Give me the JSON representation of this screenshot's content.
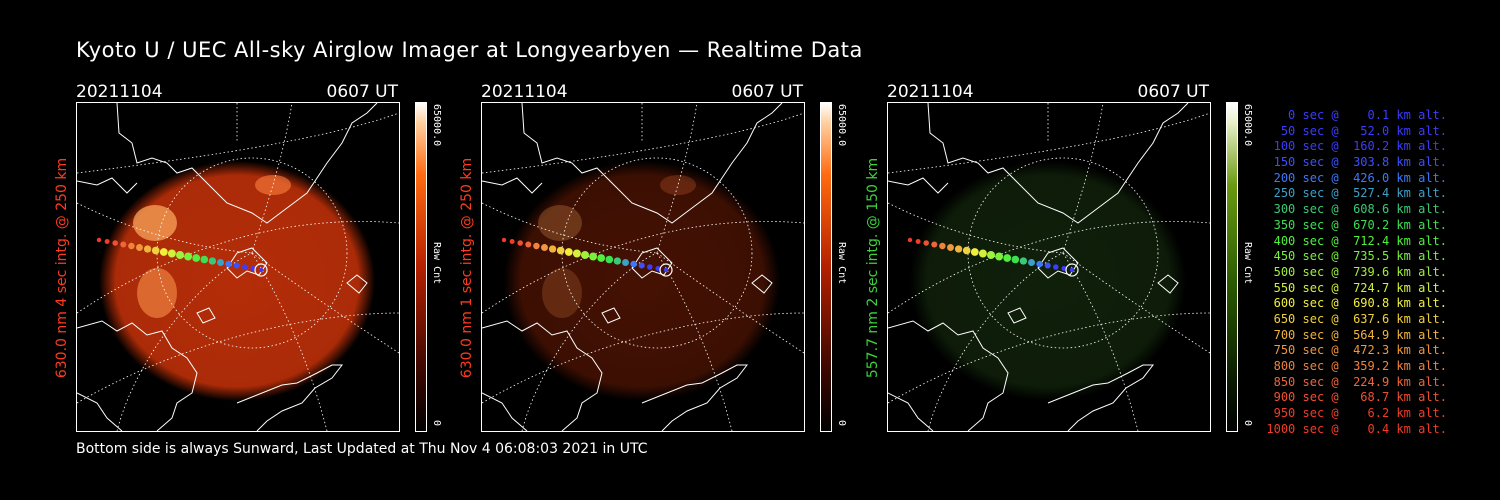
{
  "title": "Kyoto U / UEC All-sky Airglow Imager at Longyearbyen — Realtime Data",
  "footer": "Bottom side is always Sunward, Last Updated at Thu Nov  4 06:08:03 2021 in UTC",
  "colors": {
    "red_label": "#ff3b1e",
    "green_label": "#3cd23c",
    "red_img": "#b42d08",
    "green_img": "#1c3a12"
  },
  "panels": [
    {
      "date": "20211104",
      "time": "0607 UT",
      "label": "630.0 nm 4 sec intg. @ 250 km",
      "cb_max": "65000.0",
      "cb_unit": "Raw Cnt",
      "cb_min": "0",
      "scheme": "red",
      "intensity": 1.0
    },
    {
      "date": "20211104",
      "time": "0607 UT",
      "label": "630.0 nm 1 sec intg. @ 250 km",
      "cb_max": "65000.0",
      "cb_unit": "Raw Cnt",
      "cb_min": "0",
      "scheme": "red",
      "intensity": 0.35
    },
    {
      "date": "20211104",
      "time": "0607 UT",
      "label": "557.7 nm 2 sec intg. @ 150 km",
      "cb_max": "65000.0",
      "cb_unit": "Raw Cnt",
      "cb_min": "0",
      "scheme": "green",
      "intensity": 0.5
    }
  ],
  "legend": [
    {
      "text": "   0 sec @    0.1 km alt.",
      "color": "#3c3cff"
    },
    {
      "text": "  50 sec @   52.0 km alt.",
      "color": "#3c3cff"
    },
    {
      "text": " 100 sec @  160.2 km alt.",
      "color": "#3c3cff"
    },
    {
      "text": " 150 sec @  303.8 km alt.",
      "color": "#3c50ff"
    },
    {
      "text": " 200 sec @  426.0 km alt.",
      "color": "#3c78ff"
    },
    {
      "text": " 250 sec @  527.4 km alt.",
      "color": "#3ca0c8"
    },
    {
      "text": " 300 sec @  608.6 km alt.",
      "color": "#3cc878"
    },
    {
      "text": " 350 sec @  670.2 km alt.",
      "color": "#3ce050"
    },
    {
      "text": " 400 sec @  712.4 km alt.",
      "color": "#50f03c"
    },
    {
      "text": " 450 sec @  735.5 km alt.",
      "color": "#78f03c"
    },
    {
      "text": " 500 sec @  739.6 km alt.",
      "color": "#a0f03c"
    },
    {
      "text": " 550 sec @  724.7 km alt.",
      "color": "#d2f03c"
    },
    {
      "text": " 600 sec @  690.8 km alt.",
      "color": "#f0f03c"
    },
    {
      "text": " 650 sec @  637.6 km alt.",
      "color": "#f0d23c"
    },
    {
      "text": " 700 sec @  564.9 km alt.",
      "color": "#f0b43c"
    },
    {
      "text": " 750 sec @  472.3 km alt.",
      "color": "#f0963c"
    },
    {
      "text": " 800 sec @  359.2 km alt.",
      "color": "#f0823c"
    },
    {
      "text": " 850 sec @  224.9 km alt.",
      "color": "#f0643c"
    },
    {
      "text": " 900 sec @   68.7 km alt.",
      "color": "#f05032"
    },
    {
      "text": " 950 sec @    6.2 km alt.",
      "color": "#f03c28"
    },
    {
      "text": "1000 sec @    0.4 km alt.",
      "color": "#f03c28"
    }
  ]
}
